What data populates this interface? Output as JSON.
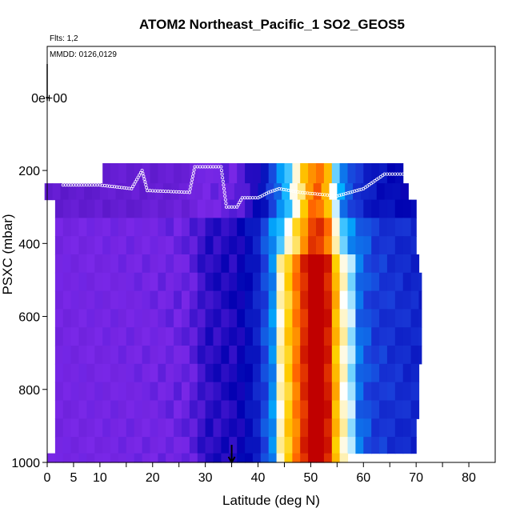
{
  "chart_data": {
    "type": "heatmap",
    "title": "ATOM2 Northeast_Pacific_1 SO2_GEOS5",
    "flights_label": "Flts: 1,2",
    "date_label": "MMDD: 0126,0129",
    "xlabel": "Latitude (deg N)",
    "ylabel": "PSXC (mbar)",
    "xlim": [
      0,
      85
    ],
    "ylim": [
      1000,
      -140
    ],
    "y_reversed": true,
    "x_ticks": [
      0,
      5,
      10,
      20,
      30,
      40,
      50,
      60,
      70,
      80
    ],
    "x_ticks_minor": [
      15,
      25,
      35,
      45,
      55,
      65,
      75
    ],
    "y_ticks": [
      1000,
      800,
      600,
      400,
      200
    ],
    "y_tick_labels": [
      "1000",
      "800",
      "600",
      "400",
      "200"
    ],
    "y_extra_tick": {
      "value": 0,
      "label": "0e+00"
    },
    "grid": false,
    "colorscale": [
      "#5a18c8",
      "#7a28e8",
      "#0000b0",
      "#1a3ad8",
      "#00b0ff",
      "#ffffff",
      "#ffd000",
      "#ff6000",
      "#c00000"
    ],
    "rows": [
      {
        "p_top": 180,
        "p_bot": 235,
        "lat0": 10.5,
        "lat1": 67.5
      },
      {
        "p_top": 235,
        "p_bot": 280,
        "lat0": -0.5,
        "lat1": 68.5
      },
      {
        "p_top": 280,
        "p_bot": 330,
        "lat0": 1.5,
        "lat1": 70
      },
      {
        "p_top": 330,
        "p_bot": 380,
        "lat0": 1.5,
        "lat1": 70
      },
      {
        "p_top": 380,
        "p_bot": 430,
        "lat0": 1.5,
        "lat1": 70
      },
      {
        "p_top": 430,
        "p_bot": 480,
        "lat0": 1.5,
        "lat1": 70.5
      },
      {
        "p_top": 480,
        "p_bot": 530,
        "lat0": 1.5,
        "lat1": 71
      },
      {
        "p_top": 530,
        "p_bot": 580,
        "lat0": 1.5,
        "lat1": 71
      },
      {
        "p_top": 580,
        "p_bot": 630,
        "lat0": 1.5,
        "lat1": 71
      },
      {
        "p_top": 630,
        "p_bot": 680,
        "lat0": 1.5,
        "lat1": 71
      },
      {
        "p_top": 680,
        "p_bot": 730,
        "lat0": 1.5,
        "lat1": 71
      },
      {
        "p_top": 730,
        "p_bot": 780,
        "lat0": 1.5,
        "lat1": 70.5
      },
      {
        "p_top": 780,
        "p_bot": 830,
        "lat0": 1.5,
        "lat1": 70.5
      },
      {
        "p_top": 830,
        "p_bot": 880,
        "lat0": 1.5,
        "lat1": 70.5
      },
      {
        "p_top": 880,
        "p_bot": 930,
        "lat0": 1.5,
        "lat1": 70
      },
      {
        "p_top": 930,
        "p_bot": 975,
        "lat0": 1.5,
        "lat1": 70
      },
      {
        "p_top": 975,
        "p_bot": 1000,
        "lat0": 0,
        "lat1": 57
      }
    ],
    "latitude_profile": [
      {
        "lat": 0,
        "v": 0.08
      },
      {
        "lat": 20,
        "v": 0.1
      },
      {
        "lat": 27,
        "v": 0.12
      },
      {
        "lat": 30,
        "v": 0.18
      },
      {
        "lat": 36,
        "v": 0.2
      },
      {
        "lat": 38,
        "v": 0.25
      },
      {
        "lat": 40,
        "v": 0.3
      },
      {
        "lat": 45,
        "v": 0.55
      },
      {
        "lat": 48,
        "v": 0.75
      },
      {
        "lat": 51,
        "v": 0.95
      },
      {
        "lat": 53,
        "v": 0.85
      },
      {
        "lat": 55,
        "v": 0.6
      },
      {
        "lat": 57,
        "v": 0.45
      },
      {
        "lat": 62,
        "v": 0.35
      },
      {
        "lat": 71,
        "v": 0.3
      }
    ],
    "flight_track": [
      {
        "lat": 3,
        "p": 240
      },
      {
        "lat": 10,
        "p": 240
      },
      {
        "lat": 16,
        "p": 250
      },
      {
        "lat": 18,
        "p": 200
      },
      {
        "lat": 19,
        "p": 255
      },
      {
        "lat": 27,
        "p": 260
      },
      {
        "lat": 28,
        "p": 190
      },
      {
        "lat": 33,
        "p": 190
      },
      {
        "lat": 34,
        "p": 300
      },
      {
        "lat": 36,
        "p": 300
      },
      {
        "lat": 37,
        "p": 275
      },
      {
        "lat": 40,
        "p": 275
      },
      {
        "lat": 42,
        "p": 260
      },
      {
        "lat": 44,
        "p": 250
      },
      {
        "lat": 48,
        "p": 260
      },
      {
        "lat": 55,
        "p": 270
      },
      {
        "lat": 60,
        "p": 250
      },
      {
        "lat": 64,
        "p": 210
      },
      {
        "lat": 68,
        "p": 210
      }
    ],
    "marker": {
      "lat": 35,
      "p": 1000
    }
  }
}
